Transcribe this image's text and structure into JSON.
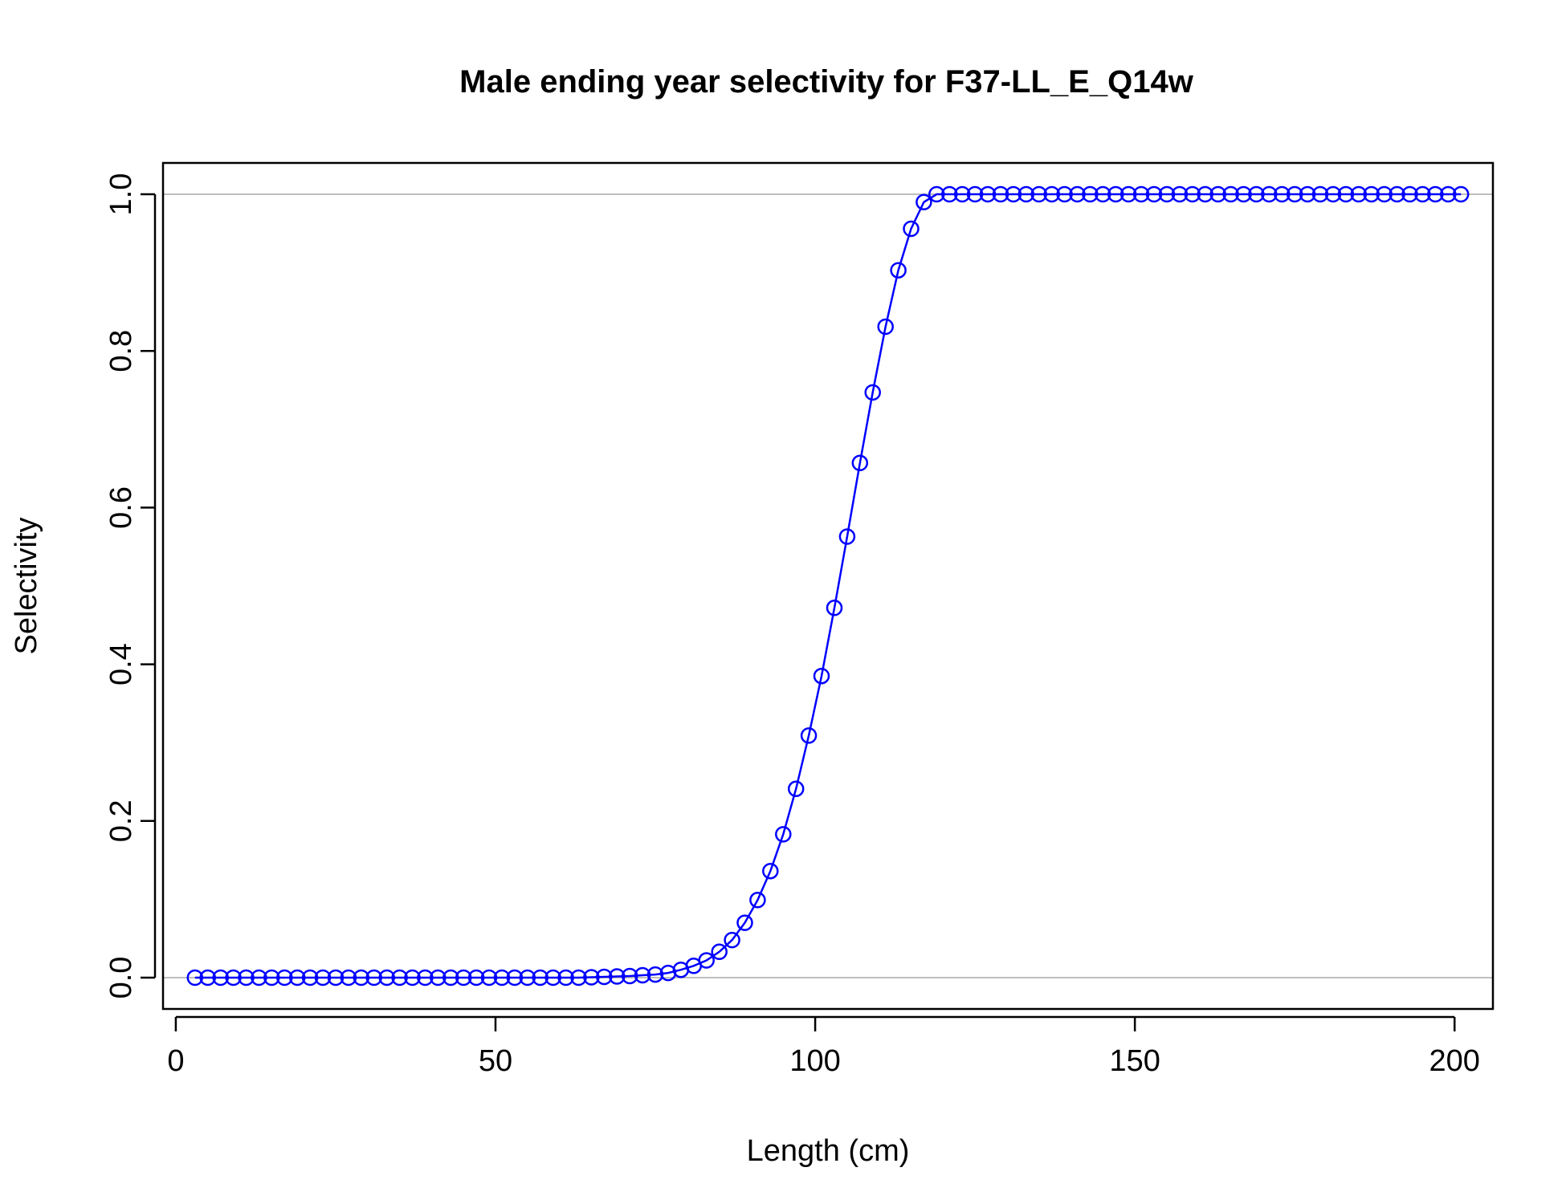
{
  "chart_data": {
    "type": "line",
    "title": "Male ending year selectivity for F37-LL_E_Q14w",
    "xlabel": "Length (cm)",
    "ylabel": "Selectivity",
    "xlim": [
      -2,
      206
    ],
    "ylim": [
      -0.04,
      1.04
    ],
    "x_ticks": [
      0,
      50,
      100,
      150,
      200
    ],
    "y_ticks": [
      0.0,
      0.2,
      0.4,
      0.6,
      0.8,
      1.0
    ],
    "x_tick_labels": [
      "0",
      "50",
      "100",
      "150",
      "200"
    ],
    "y_tick_labels": [
      "0.0",
      "0.2",
      "0.4",
      "0.6",
      "0.8",
      "1.0"
    ],
    "reference_lines": [
      0,
      1
    ],
    "reference_line_color": "#bebebe",
    "series": [
      {
        "color": "#0000ff",
        "marker": "open-circle",
        "x": [
          3,
          5,
          7,
          9,
          11,
          13,
          15,
          17,
          19,
          21,
          23,
          25,
          27,
          29,
          31,
          33,
          35,
          37,
          39,
          41,
          43,
          45,
          47,
          49,
          51,
          53,
          55,
          57,
          59,
          61,
          63,
          65,
          67,
          69,
          71,
          73,
          75,
          77,
          79,
          81,
          83,
          85,
          87,
          89,
          91,
          93,
          95,
          97,
          99,
          101,
          103,
          105,
          107,
          109,
          111,
          113,
          115,
          117,
          119,
          121,
          123,
          125,
          127,
          129,
          131,
          133,
          135,
          137,
          139,
          141,
          143,
          145,
          147,
          149,
          151,
          153,
          155,
          157,
          159,
          161,
          163,
          165,
          167,
          169,
          171,
          173,
          175,
          177,
          179,
          181,
          183,
          185,
          187,
          189,
          191,
          193,
          195,
          197,
          199,
          201
        ],
        "values": [
          0,
          0,
          0,
          0,
          0,
          0,
          0,
          0,
          0,
          0,
          0,
          0,
          0,
          0,
          0,
          0,
          0,
          0,
          0,
          0,
          0,
          0,
          0,
          0,
          0,
          0,
          0,
          0,
          0,
          0,
          0,
          0.0005,
          0.001,
          0.0015,
          0.002,
          0.003,
          0.004,
          0.006,
          0.01,
          0.015,
          0.022,
          0.033,
          0.048,
          0.07,
          0.099,
          0.136,
          0.183,
          0.241,
          0.309,
          0.385,
          0.472,
          0.563,
          0.657,
          0.747,
          0.831,
          0.903,
          0.956,
          0.99,
          1,
          1,
          1,
          1,
          1,
          1,
          1,
          1,
          1,
          1,
          1,
          1,
          1,
          1,
          1,
          1,
          1,
          1,
          1,
          1,
          1,
          1,
          1,
          1,
          1,
          1,
          1,
          1,
          1,
          1,
          1,
          1,
          1,
          1,
          1,
          1,
          1,
          1,
          1,
          1,
          1,
          1
        ]
      }
    ]
  }
}
